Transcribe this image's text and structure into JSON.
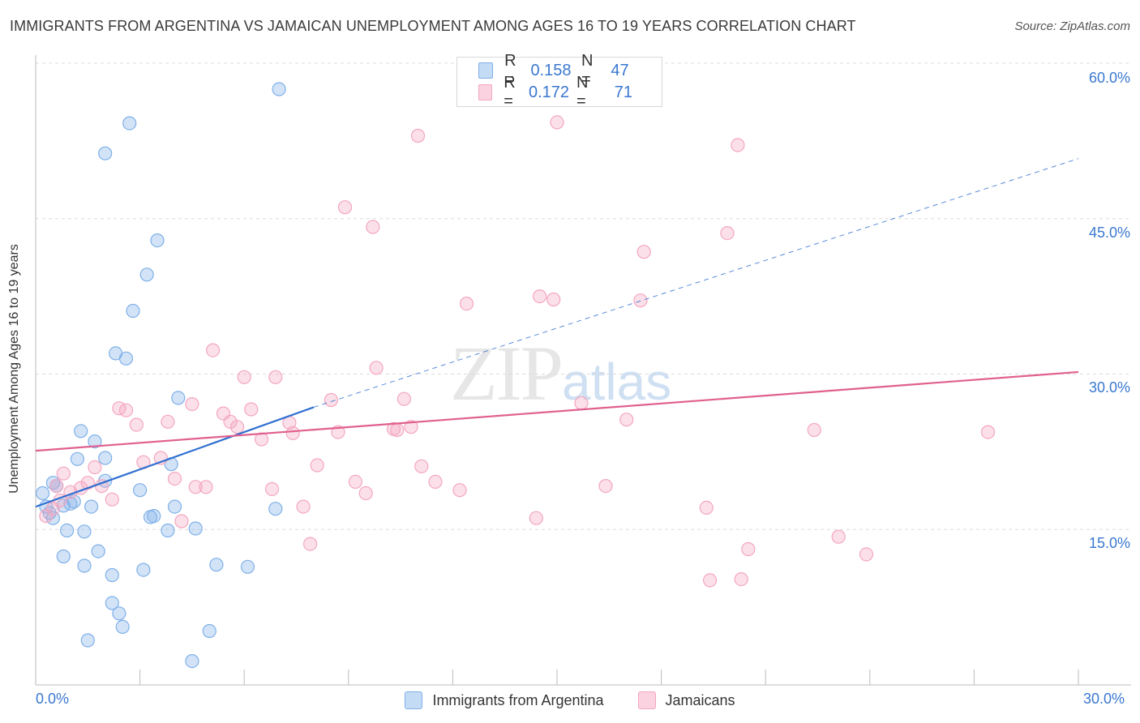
{
  "title": "IMMIGRANTS FROM ARGENTINA VS JAMAICAN UNEMPLOYMENT AMONG AGES 16 TO 19 YEARS CORRELATION CHART",
  "source": "Source: ZipAtlas.com",
  "watermark": {
    "zip": "ZIP",
    "atlas": "atlas"
  },
  "legend_top": {
    "r_label": "R =",
    "n_label": "N =",
    "rows": [
      {
        "r": "0.158",
        "n": "47"
      },
      {
        "r": "0.172",
        "n": "71"
      }
    ]
  },
  "chart_data": {
    "type": "scatter",
    "title": "IMMIGRANTS FROM ARGENTINA VS JAMAICAN UNEMPLOYMENT AMONG AGES 16 TO 19 YEARS CORRELATION CHART",
    "xlabel": "",
    "ylabel": "Unemployment Among Ages 16 to 19 years",
    "xlim": [
      0,
      30
    ],
    "ylim": [
      0,
      60
    ],
    "x_tick_labels": [
      "0.0%",
      "30.0%"
    ],
    "y_ticks": [
      15,
      30,
      45,
      60
    ],
    "y_tick_labels": [
      "15.0%",
      "30.0%",
      "45.0%",
      "60.0%"
    ],
    "grid": true,
    "legend_position": "bottom",
    "colors": {
      "argentina": "#7fb0e8",
      "jamaicans": "#f4a6c0",
      "argentina_line": "#2f6fd0",
      "jamaicans_line": "#e0608f"
    },
    "series": [
      {
        "name": "Immigrants from Argentina",
        "color": "#7fb0e8",
        "trend": {
          "from": [
            0.0,
            17.2
          ],
          "to": [
            8.0,
            26.8
          ],
          "dashed_to": [
            30.0,
            50.8
          ]
        },
        "points": [
          [
            0.2,
            18.5
          ],
          [
            0.3,
            17.2
          ],
          [
            0.4,
            16.6
          ],
          [
            0.5,
            16.1
          ],
          [
            0.5,
            19.5
          ],
          [
            0.6,
            19.2
          ],
          [
            0.8,
            17.3
          ],
          [
            0.9,
            14.9
          ],
          [
            0.8,
            12.4
          ],
          [
            1.0,
            17.5
          ],
          [
            1.1,
            17.7
          ],
          [
            1.2,
            21.8
          ],
          [
            1.3,
            24.5
          ],
          [
            1.4,
            11.5
          ],
          [
            1.4,
            14.8
          ],
          [
            1.5,
            4.3
          ],
          [
            1.6,
            17.2
          ],
          [
            1.7,
            23.5
          ],
          [
            1.8,
            12.9
          ],
          [
            2.0,
            21.9
          ],
          [
            2.0,
            19.7
          ],
          [
            2.0,
            51.3
          ],
          [
            2.2,
            10.6
          ],
          [
            2.2,
            7.9
          ],
          [
            2.3,
            32.0
          ],
          [
            2.4,
            6.9
          ],
          [
            2.5,
            5.6
          ],
          [
            2.6,
            31.5
          ],
          [
            2.7,
            54.2
          ],
          [
            2.8,
            36.1
          ],
          [
            3.0,
            18.8
          ],
          [
            3.1,
            11.1
          ],
          [
            3.2,
            39.6
          ],
          [
            3.3,
            16.2
          ],
          [
            3.4,
            16.3
          ],
          [
            3.5,
            42.9
          ],
          [
            3.8,
            14.9
          ],
          [
            3.9,
            21.3
          ],
          [
            4.0,
            17.2
          ],
          [
            4.1,
            27.7
          ],
          [
            4.5,
            2.3
          ],
          [
            4.6,
            15.1
          ],
          [
            5.0,
            5.2
          ],
          [
            5.2,
            11.6
          ],
          [
            6.1,
            11.4
          ],
          [
            7.0,
            57.5
          ],
          [
            6.9,
            17.0
          ]
        ]
      },
      {
        "name": "Jamaicans",
        "color": "#f4a6c0",
        "trend": {
          "from": [
            0.0,
            22.6
          ],
          "to": [
            30.0,
            30.2
          ]
        },
        "points": [
          [
            0.3,
            16.3
          ],
          [
            0.5,
            17.0
          ],
          [
            0.6,
            19.2
          ],
          [
            0.8,
            20.4
          ],
          [
            1.0,
            18.6
          ],
          [
            1.3,
            19.0
          ],
          [
            1.5,
            19.5
          ],
          [
            1.7,
            21.0
          ],
          [
            1.9,
            19.2
          ],
          [
            2.2,
            17.9
          ],
          [
            2.4,
            26.7
          ],
          [
            2.6,
            26.5
          ],
          [
            2.9,
            25.1
          ],
          [
            3.1,
            21.5
          ],
          [
            3.6,
            21.9
          ],
          [
            3.8,
            25.4
          ],
          [
            4.0,
            19.9
          ],
          [
            4.2,
            15.8
          ],
          [
            4.5,
            27.1
          ],
          [
            4.6,
            19.1
          ],
          [
            4.9,
            19.1
          ],
          [
            5.1,
            32.3
          ],
          [
            5.4,
            26.2
          ],
          [
            5.6,
            25.4
          ],
          [
            5.8,
            24.9
          ],
          [
            6.0,
            29.7
          ],
          [
            6.2,
            26.6
          ],
          [
            6.5,
            23.7
          ],
          [
            6.8,
            18.9
          ],
          [
            6.9,
            29.7
          ],
          [
            7.3,
            25.3
          ],
          [
            7.4,
            24.3
          ],
          [
            7.7,
            17.2
          ],
          [
            7.9,
            13.6
          ],
          [
            8.1,
            21.2
          ],
          [
            8.5,
            27.5
          ],
          [
            8.7,
            24.4
          ],
          [
            8.9,
            46.1
          ],
          [
            9.2,
            19.6
          ],
          [
            9.5,
            18.5
          ],
          [
            9.7,
            44.2
          ],
          [
            9.8,
            30.6
          ],
          [
            10.3,
            24.7
          ],
          [
            10.4,
            24.6
          ],
          [
            10.6,
            27.6
          ],
          [
            10.8,
            24.9
          ],
          [
            11.0,
            53.0
          ],
          [
            11.1,
            21.1
          ],
          [
            11.5,
            19.6
          ],
          [
            12.2,
            18.8
          ],
          [
            12.4,
            36.8
          ],
          [
            14.4,
            16.1
          ],
          [
            14.5,
            37.5
          ],
          [
            14.9,
            37.2
          ],
          [
            15.0,
            54.3
          ],
          [
            15.7,
            27.2
          ],
          [
            16.4,
            19.2
          ],
          [
            17.0,
            25.6
          ],
          [
            17.4,
            37.1
          ],
          [
            17.5,
            41.8
          ],
          [
            19.3,
            17.1
          ],
          [
            19.4,
            10.1
          ],
          [
            19.9,
            43.6
          ],
          [
            20.2,
            52.1
          ],
          [
            20.3,
            10.2
          ],
          [
            20.5,
            13.1
          ],
          [
            22.4,
            24.6
          ],
          [
            23.1,
            14.3
          ],
          [
            23.9,
            12.6
          ],
          [
            27.4,
            24.4
          ],
          [
            0.7,
            17.8
          ]
        ]
      }
    ]
  },
  "legend_bottom": {
    "items": [
      {
        "label": "Immigrants from Argentina"
      },
      {
        "label": "Jamaicans"
      }
    ]
  }
}
